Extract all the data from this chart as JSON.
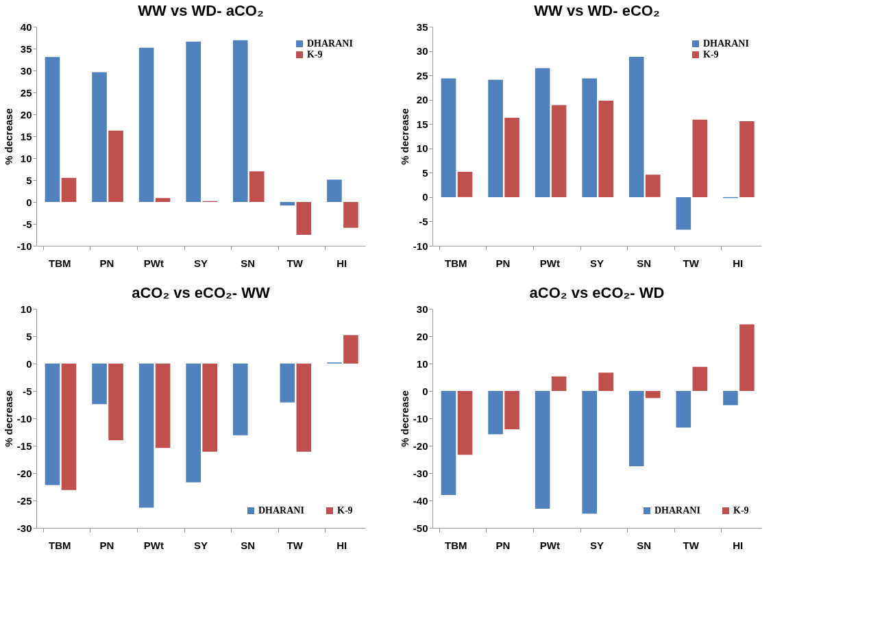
{
  "chart_data": [
    {
      "type": "bar",
      "title": "WW vs WD- aCO₂",
      "ylabel": "% decrease",
      "categories": [
        "TBM",
        "PN",
        "PWt",
        "SY",
        "SN",
        "TW",
        "HI"
      ],
      "ylim": [
        -10,
        40
      ],
      "yticks": [
        -10,
        -5,
        0,
        5,
        10,
        15,
        20,
        25,
        30,
        35,
        40
      ],
      "grid": false,
      "legend": "top right",
      "series": [
        {
          "name": "DHARANI",
          "color": "#4f81bd",
          "values": [
            33.1,
            29.6,
            35.2,
            36.6,
            36.9,
            -0.8,
            5.1
          ]
        },
        {
          "name": "K-9",
          "color": "#c0504d",
          "values": [
            5.5,
            16.3,
            0.9,
            0.2,
            7.0,
            -7.5,
            -5.9
          ]
        }
      ]
    },
    {
      "type": "bar",
      "title": "WW vs WD- eCO₂",
      "ylabel": "% decrease",
      "categories": [
        "TBM",
        "PN",
        "PWt",
        "SY",
        "SN",
        "TW",
        "HI"
      ],
      "ylim": [
        -10,
        35
      ],
      "yticks": [
        -10,
        -5,
        0,
        5,
        10,
        15,
        20,
        25,
        30,
        35
      ],
      "grid": false,
      "legend": "top right",
      "series": [
        {
          "name": "DHARANI",
          "color": "#4f81bd",
          "values": [
            24.4,
            24.1,
            26.5,
            24.4,
            28.8,
            -6.7,
            -0.2
          ]
        },
        {
          "name": "K-9",
          "color": "#c0504d",
          "values": [
            5.2,
            16.3,
            18.9,
            19.8,
            4.6,
            15.9,
            15.6
          ]
        }
      ]
    },
    {
      "type": "bar",
      "title": "aCO₂ vs eCO₂- WW",
      "ylabel": "% decrease",
      "categories": [
        "TBM",
        "PN",
        "PWt",
        "SY",
        "SN",
        "TW",
        "HI"
      ],
      "ylim": [
        -30,
        10
      ],
      "yticks": [
        -30,
        -25,
        -20,
        -15,
        -10,
        -5,
        0,
        5,
        10
      ],
      "grid": false,
      "legend": "bottom right",
      "series": [
        {
          "name": "DHARANI",
          "color": "#4f81bd",
          "values": [
            -22.2,
            -7.4,
            -26.3,
            -21.7,
            -13.1,
            -7.1,
            0.2
          ]
        },
        {
          "name": "K-9",
          "color": "#c0504d",
          "values": [
            -23.1,
            -14.0,
            -15.4,
            -16.1,
            0,
            -16.1,
            5.2
          ]
        }
      ]
    },
    {
      "type": "bar",
      "title": "aCO₂ vs eCO₂- WD",
      "ylabel": "% decrease",
      "categories": [
        "TBM",
        "PN",
        "PWt",
        "SY",
        "SN",
        "TW",
        "HI"
      ],
      "ylim": [
        -50,
        30
      ],
      "yticks": [
        -50,
        -40,
        -30,
        -20,
        -10,
        0,
        10,
        20,
        30
      ],
      "grid": false,
      "legend": "bottom right",
      "series": [
        {
          "name": "DHARANI",
          "color": "#4f81bd",
          "values": [
            -38.0,
            -15.8,
            -43.0,
            -44.8,
            -27.5,
            -13.4,
            -5.2
          ]
        },
        {
          "name": "K-9",
          "color": "#c0504d",
          "values": [
            -23.3,
            -14.0,
            5.3,
            6.7,
            -2.6,
            8.8,
            24.3
          ]
        }
      ]
    }
  ]
}
